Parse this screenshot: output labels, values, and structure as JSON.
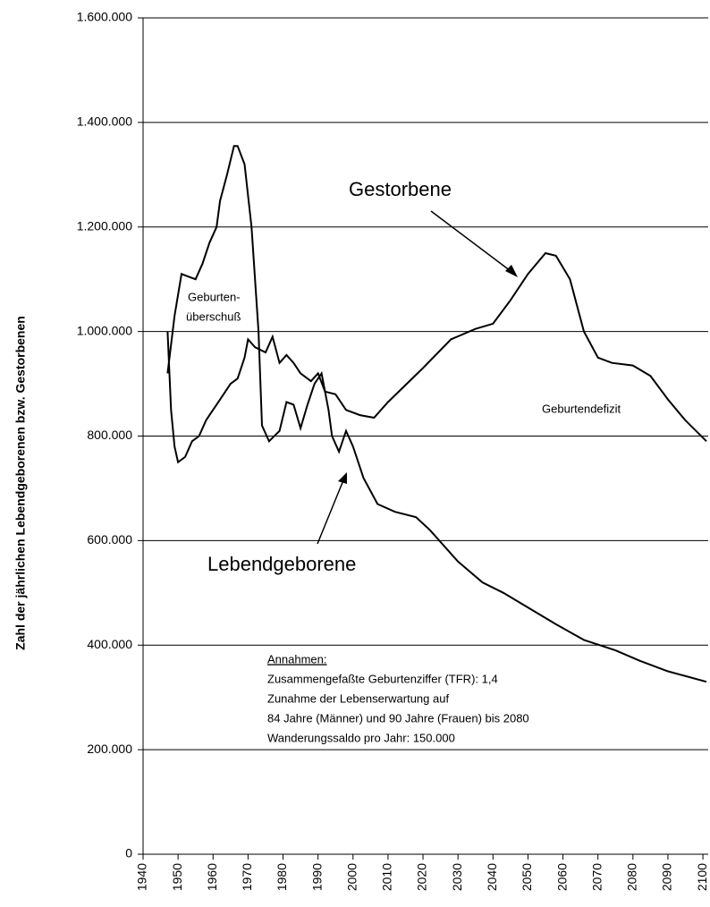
{
  "chart_data": {
    "type": "line",
    "y_label": "Zahl der jährlichen Lebendgeborenen bzw. Gestorbenen",
    "xlim": [
      1940,
      2101
    ],
    "xticks": [
      1940,
      1950,
      1960,
      1970,
      1980,
      1990,
      2000,
      2010,
      2020,
      2030,
      2040,
      2050,
      2060,
      2070,
      2080,
      2090,
      2100
    ],
    "ylim": [
      0,
      1600000
    ],
    "yticks": [
      0,
      {
        "value": 200000,
        "label": "200.000"
      },
      {
        "value": 400000,
        "label": "400.000"
      },
      {
        "value": 600000,
        "label": "600.000"
      },
      {
        "value": 800000,
        "label": "800.000"
      },
      {
        "value": 1000000,
        "label": "1.000.000"
      },
      {
        "value": 1200000,
        "label": "1.200.000"
      },
      {
        "value": 1400000,
        "label": "1.400.000"
      },
      {
        "value": 1600000,
        "label": "1.600.000"
      }
    ],
    "grid": true,
    "series": [
      {
        "name": "Lebendgeborene",
        "color": "#000000",
        "x": [
          1947,
          1949,
          1951,
          1953,
          1955,
          1957,
          1959,
          1961,
          1962,
          1964,
          1966,
          1967,
          1969,
          1971,
          1973,
          1974,
          1976,
          1979,
          1981,
          1983,
          1985,
          1987,
          1989,
          1991,
          1993,
          1994,
          1996,
          1998,
          2000,
          2003,
          2007,
          2012,
          2018,
          2022,
          2030,
          2037,
          2043,
          2048,
          2058,
          2066,
          2075,
          2082,
          2090,
          2101
        ],
        "values": [
          920000,
          1030000,
          1110000,
          1105000,
          1100000,
          1130000,
          1170000,
          1200000,
          1250000,
          1300000,
          1355000,
          1355000,
          1320000,
          1200000,
          1000000,
          820000,
          790000,
          810000,
          865000,
          860000,
          815000,
          860000,
          900000,
          920000,
          850000,
          800000,
          770000,
          810000,
          780000,
          720000,
          670000,
          655000,
          645000,
          620000,
          560000,
          520000,
          500000,
          480000,
          440000,
          410000,
          390000,
          370000,
          350000,
          330000
        ]
      },
      {
        "name": "Gestorbene",
        "color": "#000000",
        "x": [
          1947,
          1948,
          1949,
          1950,
          1952,
          1954,
          1956,
          1958,
          1959,
          1961,
          1963,
          1965,
          1967,
          1969,
          1970,
          1972,
          1975,
          1977,
          1979,
          1981,
          1983,
          1985,
          1988,
          1990,
          1992,
          1995,
          1998,
          2002,
          2006,
          2010,
          2020,
          2028,
          2035,
          2040,
          2045,
          2050,
          2055,
          2058,
          2062,
          2066,
          2070,
          2074,
          2080,
          2085,
          2090,
          2095,
          2101
        ],
        "values": [
          1000000,
          850000,
          780000,
          750000,
          760000,
          790000,
          800000,
          830000,
          840000,
          860000,
          880000,
          900000,
          910000,
          950000,
          985000,
          970000,
          960000,
          990000,
          940000,
          955000,
          940000,
          920000,
          905000,
          920000,
          885000,
          880000,
          850000,
          840000,
          835000,
          865000,
          930000,
          985000,
          1005000,
          1015000,
          1060000,
          1110000,
          1150000,
          1145000,
          1100000,
          1000000,
          950000,
          940000,
          935000,
          915000,
          870000,
          830000,
          790000
        ]
      }
    ],
    "annotations": [
      "Gestorbene",
      "Lebendgeborene",
      "Geburten-",
      "überschuß",
      "Geburtendefizit"
    ],
    "notes": [
      "Annahmen:",
      "Zusammengefaßte Geburtenziffer (TFR): 1,4",
      "Zunahme der Lebenserwartung auf",
      "84 Jahre (Männer) und 90 Jahre (Frauen) bis 2080",
      "Wanderungssaldo pro Jahr: 150.000"
    ]
  }
}
